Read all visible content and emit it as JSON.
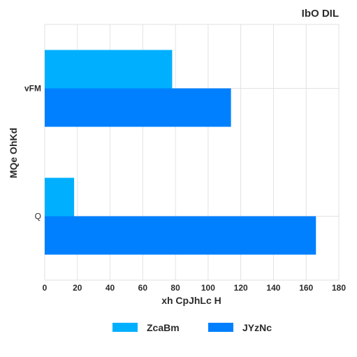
{
  "chart_data": {
    "type": "bar",
    "orientation": "horizontal",
    "title": "IbO DIL",
    "xlabel": "xh CpJhLc H",
    "ylabel": "MQe OhKd",
    "categories": [
      "vFM",
      "Q"
    ],
    "series": [
      {
        "name": "ZcaBm",
        "values": [
          78,
          18
        ],
        "color": "#00b0ff"
      },
      {
        "name": "JYzNc",
        "values": [
          114,
          166
        ],
        "color": "#0080ff"
      }
    ],
    "xlim": [
      0,
      180
    ],
    "xticks": [
      0,
      20,
      40,
      60,
      80,
      100,
      120,
      140,
      160,
      180
    ],
    "grid": true,
    "legend_position": "bottom"
  }
}
